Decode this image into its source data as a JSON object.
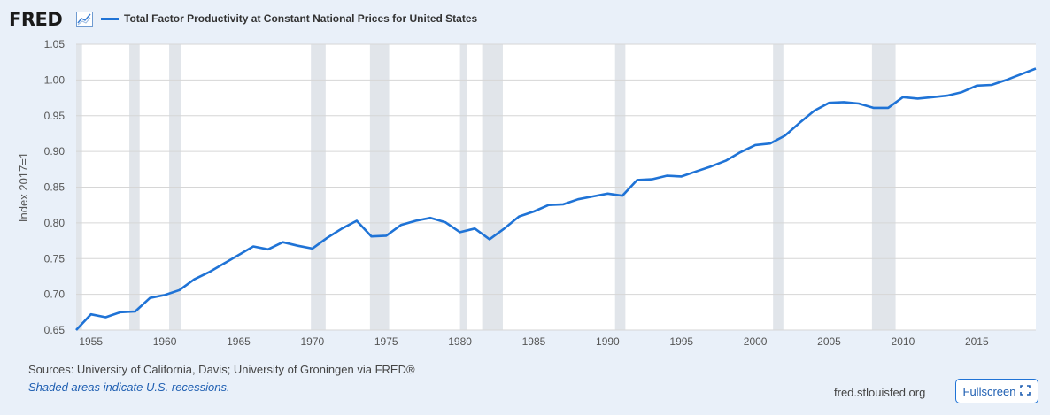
{
  "header": {
    "logo_text": "FRED",
    "logo_icon": "line-chart-icon",
    "legend_label": "Total Factor Productivity at Constant National Prices for United States",
    "legend_color": "#1f73d6"
  },
  "chart_data": {
    "type": "line",
    "title": "Total Factor Productivity at Constant National Prices for United States",
    "xlabel": "",
    "ylabel": "Index 2017=1",
    "xlim": [
      1954,
      2019
    ],
    "ylim": [
      0.65,
      1.05
    ],
    "y_ticks": [
      "0.65",
      "0.70",
      "0.75",
      "0.80",
      "0.85",
      "0.90",
      "0.95",
      "1.00",
      "1.05"
    ],
    "x_ticks": [
      "1955",
      "1960",
      "1965",
      "1970",
      "1975",
      "1980",
      "1985",
      "1990",
      "1995",
      "2000",
      "2005",
      "2010",
      "2015"
    ],
    "grid": true,
    "series": [
      {
        "name": "Total Factor Productivity at Constant National Prices for United States",
        "color": "#1f73d6",
        "x": [
          1954,
          1955,
          1956,
          1957,
          1958,
          1959,
          1960,
          1961,
          1962,
          1963,
          1964,
          1965,
          1966,
          1967,
          1968,
          1969,
          1970,
          1971,
          1972,
          1973,
          1974,
          1975,
          1976,
          1977,
          1978,
          1979,
          1980,
          1981,
          1982,
          1983,
          1984,
          1985,
          1986,
          1987,
          1988,
          1989,
          1990,
          1991,
          1992,
          1993,
          1994,
          1995,
          1996,
          1997,
          1998,
          1999,
          2000,
          2001,
          2002,
          2003,
          2004,
          2005,
          2006,
          2007,
          2008,
          2009,
          2010,
          2011,
          2012,
          2013,
          2014,
          2015,
          2016,
          2017,
          2018,
          2019
        ],
        "values": [
          0.65,
          0.672,
          0.668,
          0.675,
          0.676,
          0.695,
          0.699,
          0.706,
          0.721,
          0.731,
          0.743,
          0.755,
          0.767,
          0.763,
          0.773,
          0.768,
          0.764,
          0.779,
          0.792,
          0.803,
          0.781,
          0.782,
          0.797,
          0.803,
          0.807,
          0.801,
          0.787,
          0.792,
          0.777,
          0.792,
          0.809,
          0.816,
          0.825,
          0.826,
          0.833,
          0.837,
          0.841,
          0.838,
          0.86,
          0.861,
          0.866,
          0.865,
          0.872,
          0.879,
          0.887,
          0.899,
          0.909,
          0.911,
          0.922,
          0.94,
          0.957,
          0.968,
          0.969,
          0.967,
          0.961,
          0.961,
          0.976,
          0.974,
          0.976,
          0.978,
          0.983,
          0.992,
          0.993,
          1.0,
          1.008,
          1.016
        ]
      }
    ],
    "recessions": [
      [
        1953.6,
        1954.4
      ],
      [
        1957.6,
        1958.3
      ],
      [
        1960.3,
        1961.1
      ],
      [
        1969.9,
        1970.9
      ],
      [
        1973.9,
        1975.2
      ],
      [
        1980.0,
        1980.5
      ],
      [
        1981.5,
        1982.9
      ],
      [
        1990.5,
        1991.2
      ],
      [
        2001.2,
        2001.9
      ],
      [
        2007.9,
        2009.5
      ]
    ],
    "recession_color": "#e1e5ea"
  },
  "footer": {
    "sources": "Sources: University of California, Davis; University of Groningen via FRED®",
    "note": "Shaded areas indicate U.S. recessions.",
    "url": "fred.stlouisfed.org",
    "fullscreen_label": "Fullscreen",
    "fullscreen_icon": "expand-icon"
  }
}
